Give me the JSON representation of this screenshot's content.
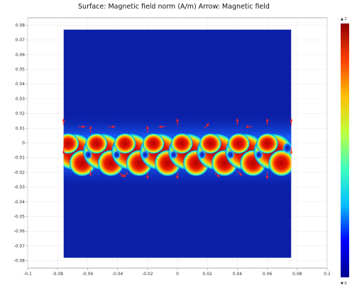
{
  "title": "Surface: Magnetic field norm (A/m) Arrow: Magnetic field",
  "colorbar": {
    "max_marker": "▲ 2",
    "min_marker": "▼ 0",
    "colormap": "rainbow",
    "colors": [
      "#00008f",
      "#0000ff",
      "#00bfff",
      "#3fffbf",
      "#bfff3f",
      "#ffbf00",
      "#ff3f00",
      "#8f0000"
    ]
  },
  "colors": {
    "background_field": "#0b1fa8",
    "arrow": "#ff2020",
    "axes_frame": "#9a9a9a",
    "grid": "#eeeeee"
  },
  "chart_data": {
    "type": "heatmap",
    "title": "Surface: Magnetic field norm (A/m) Arrow: Magnetic field",
    "xlabel": "",
    "ylabel": "",
    "xlim": [
      -0.1,
      0.1
    ],
    "ylim": [
      -0.085,
      0.085
    ],
    "grid": true,
    "x_ticks": [
      "-0.1",
      "-0.08",
      "-0.06",
      "-0.04",
      "-0.02",
      "0",
      "0.02",
      "0.04",
      "0.06",
      "0.08",
      "0.1"
    ],
    "y_ticks": [
      "0.08",
      "0.07",
      "0.06",
      "0.05",
      "0.04",
      "0.03",
      "0.02",
      "0.01",
      "0",
      "-0.01",
      "-0.02",
      "-0.03",
      "-0.04",
      "-0.05",
      "-0.06",
      "-0.07",
      "-0.08"
    ],
    "domain": {
      "x": [
        -0.076,
        0.076
      ],
      "y": [
        -0.078,
        0.077
      ]
    },
    "field_band": {
      "y": [
        -0.024,
        0.013
      ],
      "center_y": -0.006
    },
    "magnet_x": [
      -0.069,
      -0.05,
      -0.031,
      -0.012,
      0.007,
      0.026,
      0.045,
      0.064
    ],
    "arrows": [
      {
        "x": -0.076,
        "y": 0.012,
        "dx": 0,
        "dy": 1
      },
      {
        "x": -0.076,
        "y": -0.003,
        "dx": 0,
        "dy": -1
      },
      {
        "x": -0.058,
        "y": 0.007,
        "dx": 0,
        "dy": 1
      },
      {
        "x": -0.058,
        "y": -0.018,
        "dx": 0,
        "dy": -1
      },
      {
        "x": -0.039,
        "y": -0.02,
        "dx": 1,
        "dy": -1
      },
      {
        "x": -0.033,
        "y": -0.02,
        "dx": -1,
        "dy": -1
      },
      {
        "x": -0.02,
        "y": 0.007,
        "dx": 0,
        "dy": 1
      },
      {
        "x": -0.02,
        "y": -0.02,
        "dx": 0,
        "dy": -1
      },
      {
        "x": 0.0,
        "y": 0.012,
        "dx": 0,
        "dy": 1
      },
      {
        "x": 0.0,
        "y": -0.02,
        "dx": 0,
        "dy": -1
      },
      {
        "x": 0.018,
        "y": 0.01,
        "dx": 1,
        "dy": 1
      },
      {
        "x": 0.025,
        "y": -0.02,
        "dx": 1,
        "dy": -1
      },
      {
        "x": 0.04,
        "y": 0.012,
        "dx": 0,
        "dy": 1
      },
      {
        "x": 0.04,
        "y": -0.019,
        "dx": 1,
        "dy": -1
      },
      {
        "x": 0.06,
        "y": 0.012,
        "dx": 0,
        "dy": 1
      },
      {
        "x": 0.06,
        "y": -0.02,
        "dx": 0,
        "dy": -1
      },
      {
        "x": 0.076,
        "y": 0.012,
        "dx": 0,
        "dy": 1
      },
      {
        "x": 0.076,
        "y": -0.003,
        "dx": 0,
        "dy": -1
      },
      {
        "x": -0.066,
        "y": 0.011,
        "dx": 1,
        "dy": 0
      },
      {
        "x": -0.046,
        "y": 0.011,
        "dx": 1,
        "dy": 0
      },
      {
        "x": -0.008,
        "y": 0.011,
        "dx": -1,
        "dy": 0
      },
      {
        "x": 0.05,
        "y": 0.011,
        "dx": -1,
        "dy": 0
      }
    ]
  }
}
